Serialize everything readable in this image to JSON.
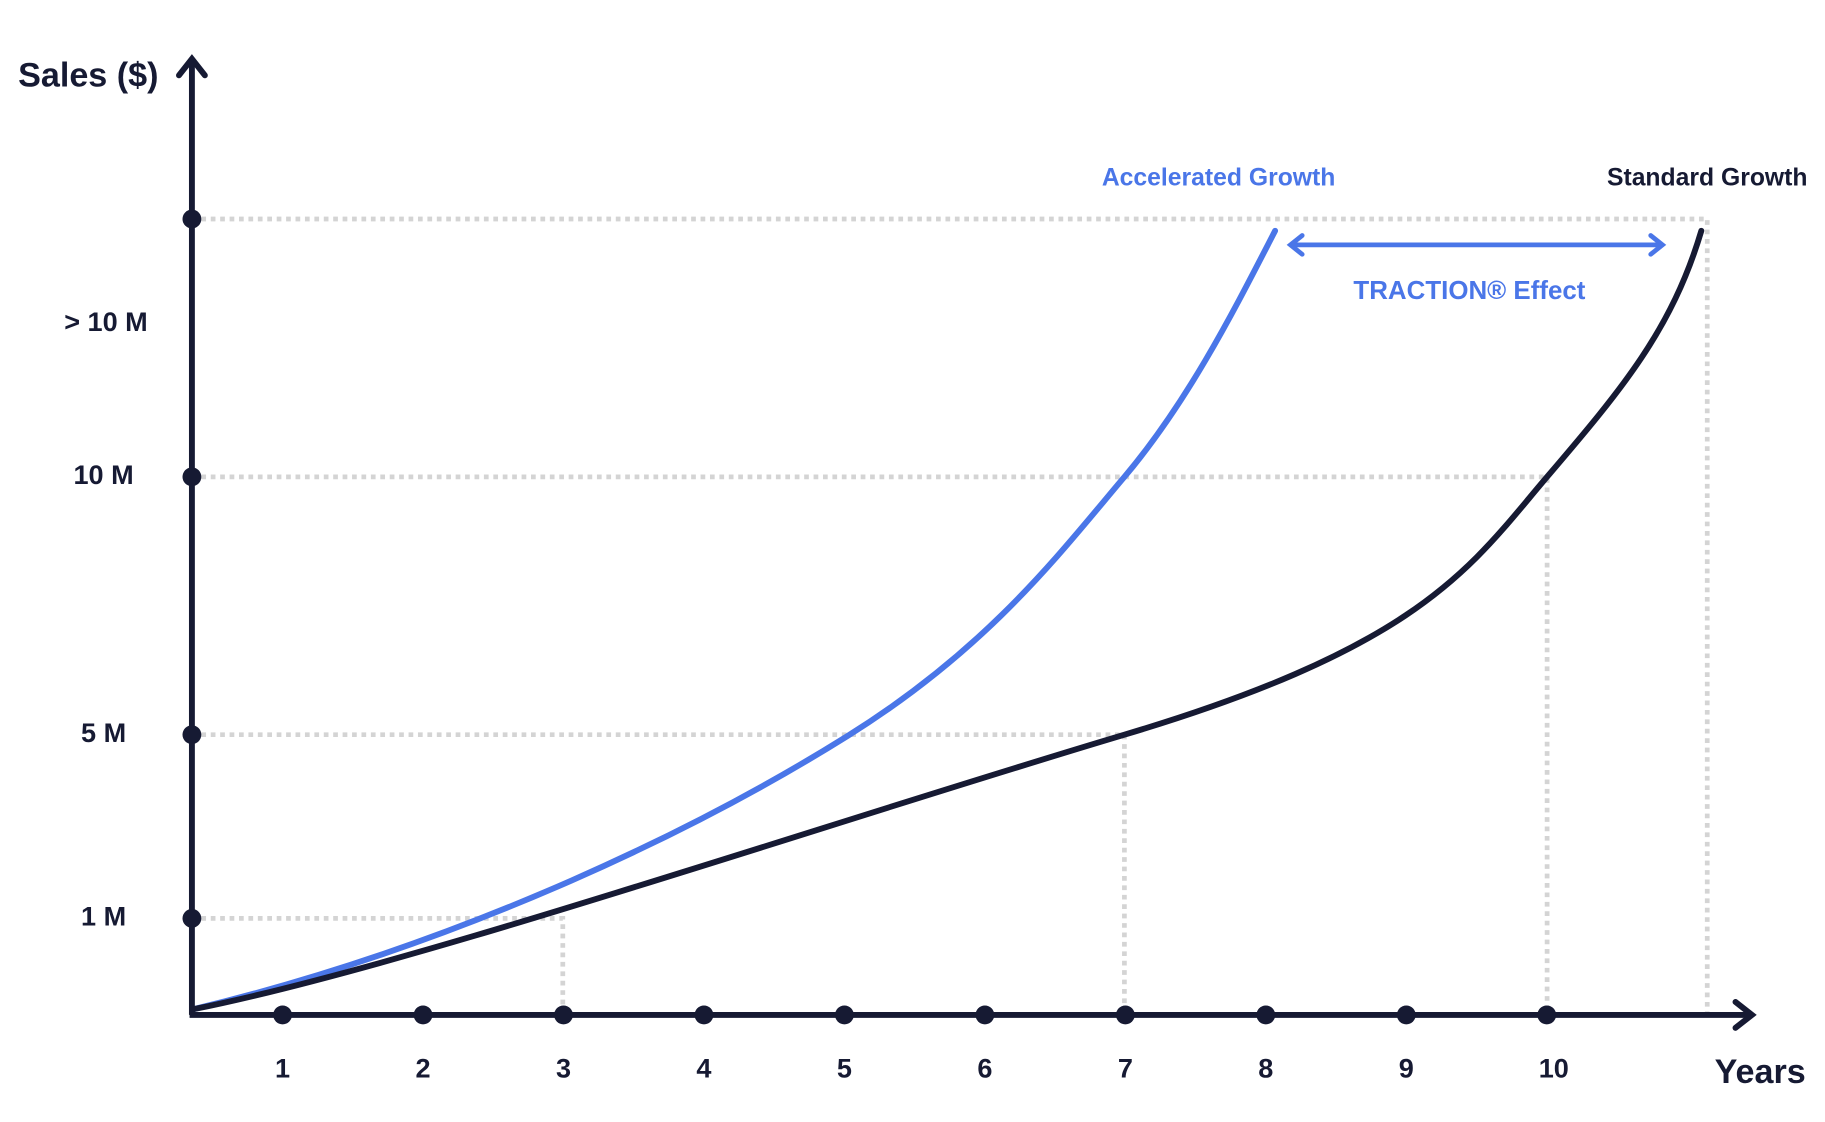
{
  "y_axis": {
    "label": "Sales ($)",
    "ticks": [
      "1 M",
      "5 M",
      "10 M",
      "> 10 M"
    ]
  },
  "x_axis": {
    "label": "Years",
    "ticks": [
      "1",
      "2",
      "3",
      "4",
      "5",
      "6",
      "7",
      "8",
      "9",
      "10"
    ]
  },
  "series": [
    {
      "name": "Accelerated Growth"
    },
    {
      "name": "Standard Growth"
    }
  ],
  "annotation": "TRACTION® Effect"
}
